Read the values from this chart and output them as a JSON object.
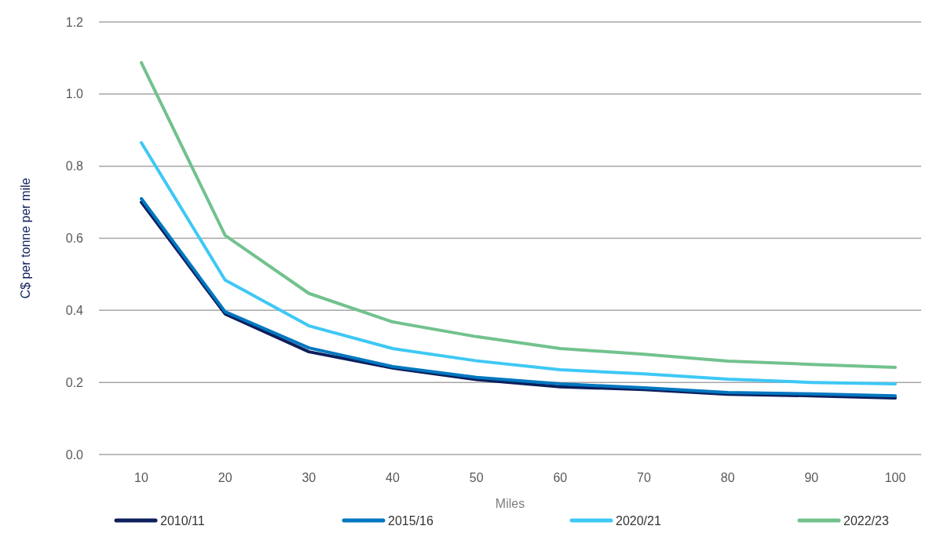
{
  "chart_data": {
    "type": "line",
    "xlabel": "Miles",
    "ylabel": "C$ per tonne per mile",
    "categories": [
      "10",
      "20",
      "30",
      "40",
      "50",
      "60",
      "70",
      "80",
      "90",
      "100"
    ],
    "series": [
      {
        "name": "2010/11",
        "color": "#0d1f5c",
        "values": [
          0.7,
          0.39,
          0.285,
          0.24,
          0.208,
          0.188,
          0.18,
          0.167,
          0.163,
          0.157
        ]
      },
      {
        "name": "2015/16",
        "color": "#0077c0",
        "values": [
          0.71,
          0.396,
          0.296,
          0.244,
          0.214,
          0.196,
          0.185,
          0.172,
          0.168,
          0.163
        ]
      },
      {
        "name": "2020/21",
        "color": "#3ec8f5",
        "values": [
          0.865,
          0.484,
          0.357,
          0.294,
          0.26,
          0.235,
          0.224,
          0.209,
          0.2,
          0.196
        ]
      },
      {
        "name": "2022/23",
        "color": "#72c28e",
        "values": [
          1.087,
          0.608,
          0.447,
          0.368,
          0.327,
          0.294,
          0.278,
          0.259,
          0.25,
          0.242
        ]
      }
    ],
    "ylim": [
      0,
      1.2
    ],
    "yticks": [
      {
        "value": 0,
        "label": "0.0"
      },
      {
        "value": 0.2,
        "label": "0.2"
      },
      {
        "value": 0.4,
        "label": "0.4"
      },
      {
        "value": 0.6,
        "label": "0.6"
      },
      {
        "value": 0.8,
        "label": "0.8"
      },
      {
        "value": 1,
        "label": "1.0"
      },
      {
        "value": 1.2,
        "label": "1.2"
      }
    ],
    "grid": "y",
    "legend": "bottom",
    "marker": "none",
    "line_style": "solid"
  }
}
